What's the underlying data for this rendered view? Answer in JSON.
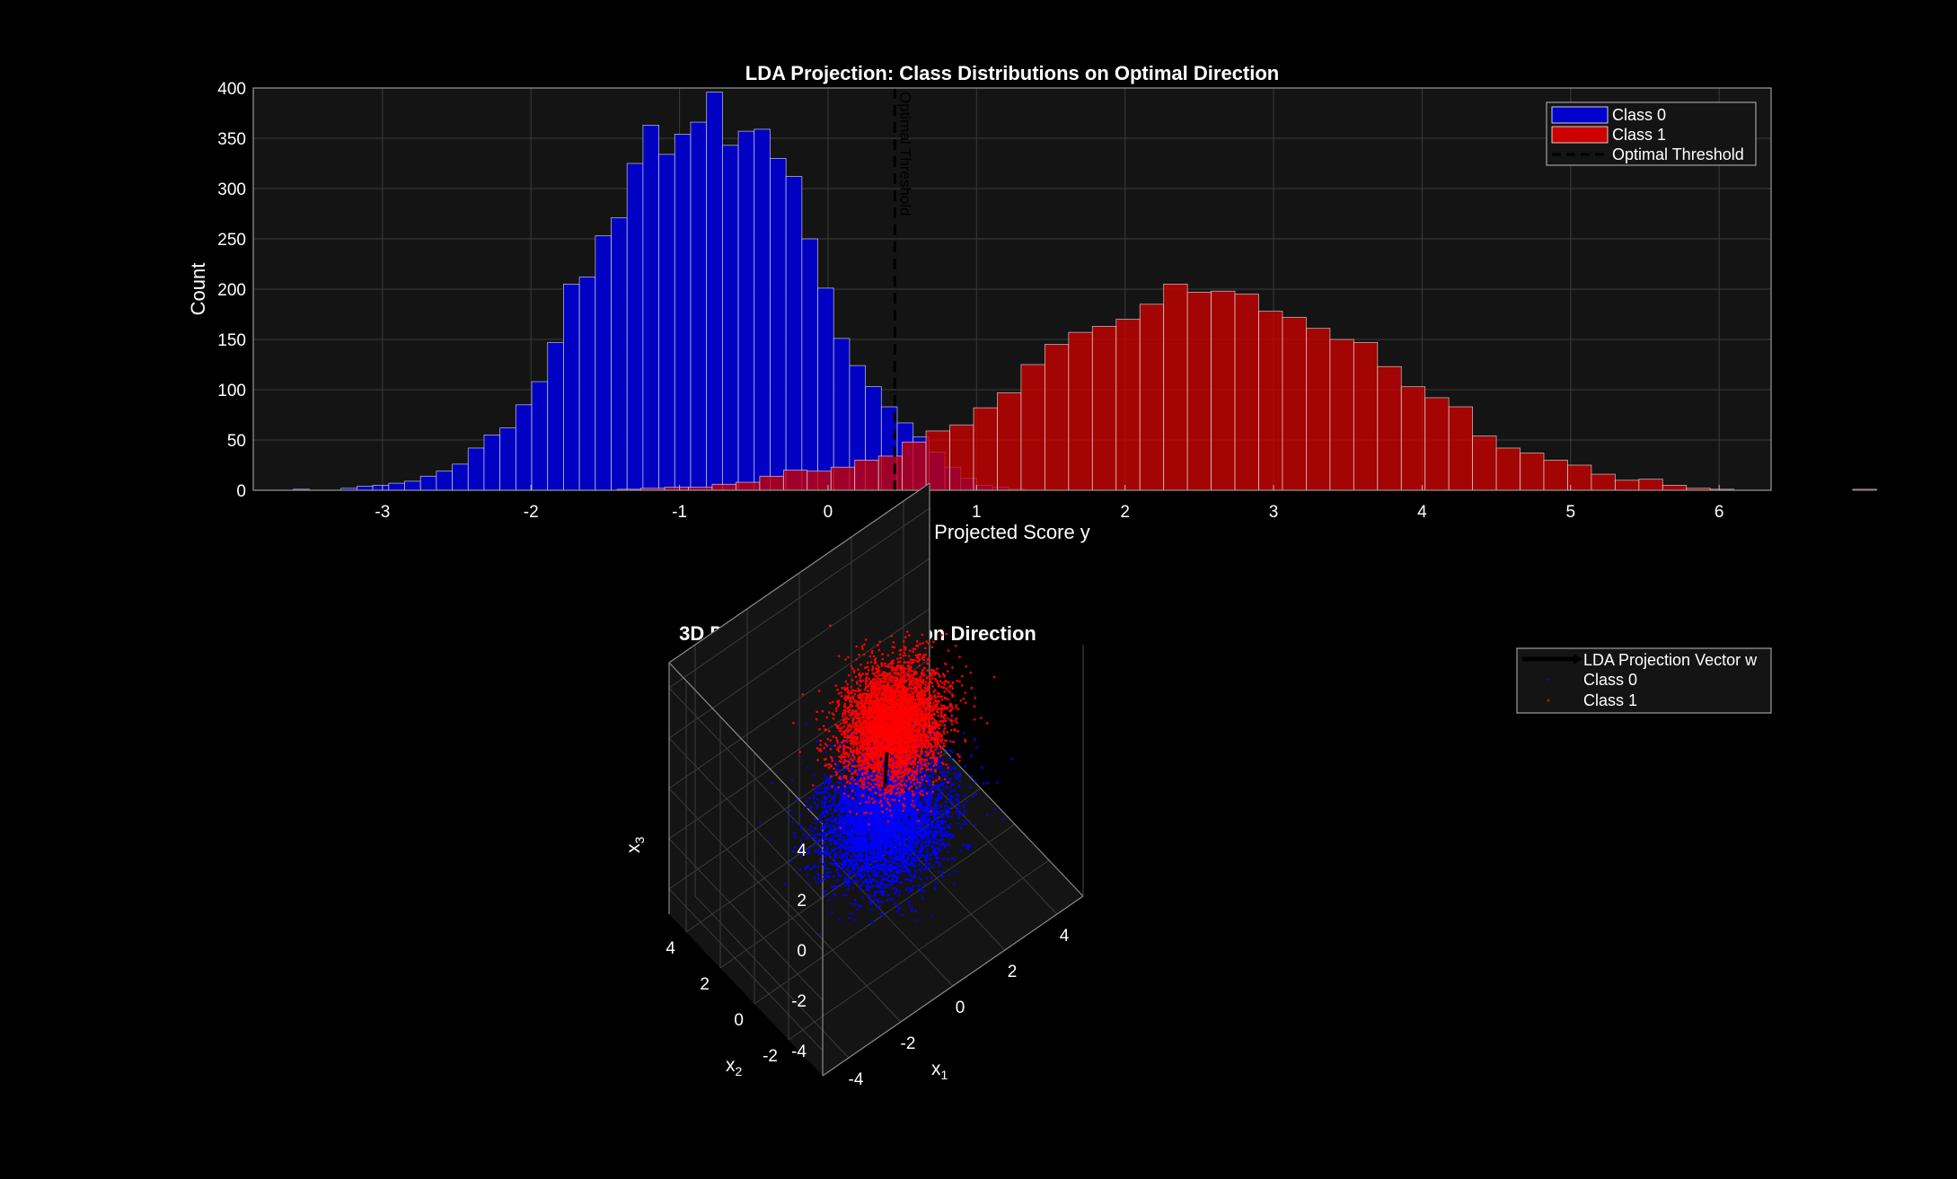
{
  "figure": {
    "background": "#000000",
    "axes_background": "#141414",
    "grid_color": "#3a3a3a",
    "text_color": "#ffffff"
  },
  "chart_data": [
    {
      "type": "bar",
      "subtype": "histogram",
      "title": "LDA Projection: Class Distributions on Optimal Direction",
      "xlabel": "Projected Score y",
      "ylabel": "Count",
      "xlim": [
        -3.87,
        6.35
      ],
      "ylim": [
        0,
        400
      ],
      "xticks": [
        -3,
        -2,
        -1,
        0,
        1,
        2,
        3,
        4,
        5,
        6
      ],
      "yticks": [
        0,
        50,
        100,
        150,
        200,
        250,
        300,
        350,
        400
      ],
      "grid": true,
      "legend_position": "top-right",
      "series": [
        {
          "name": "Class 0",
          "color": "#0000cc",
          "bin_start": -3.6,
          "bin_width": 0.107,
          "values": [
            1,
            0,
            0,
            2,
            4,
            5,
            7,
            9,
            14,
            19,
            26,
            42,
            55,
            62,
            85,
            108,
            147,
            205,
            212,
            253,
            271,
            325,
            363,
            334,
            354,
            366,
            396,
            343,
            357,
            359,
            330,
            312,
            250,
            201,
            151,
            124,
            103,
            83,
            67,
            53,
            38,
            23,
            12,
            5,
            3,
            1
          ]
        },
        {
          "name": "Class 1",
          "color": "#cc0000",
          "bin_start": -1.9,
          "bin_width": 0.16,
          "values": [
            0,
            0,
            0,
            1,
            2,
            3,
            3,
            6,
            8,
            14,
            20,
            19,
            23,
            30,
            34,
            48,
            59,
            65,
            82,
            97,
            125,
            145,
            157,
            163,
            170,
            185,
            205,
            197,
            198,
            195,
            178,
            172,
            161,
            150,
            147,
            123,
            103,
            92,
            83,
            54,
            42,
            37,
            30,
            25,
            16,
            10,
            11,
            5,
            2,
            1,
            0,
            0,
            0,
            0,
            0,
            1
          ]
        }
      ],
      "threshold": {
        "name": "Optimal Threshold",
        "x": 0.45,
        "label": "Optimal Threshold",
        "color": "#000000"
      }
    },
    {
      "type": "scatter",
      "subtype": "scatter3d",
      "title": "3D Data with LDA Projection Direction",
      "xlabel": "x",
      "xlabel_sub": "1",
      "ylabel": "x",
      "ylabel_sub": "2",
      "zlabel": "x",
      "zlabel_sub": "3",
      "xlim": [
        -5,
        5
      ],
      "ylim": [
        -4,
        5
      ],
      "zlim": [
        -5,
        5
      ],
      "xticks": [
        -4,
        -2,
        0,
        2,
        4
      ],
      "yticks": [
        -2,
        0,
        2,
        4
      ],
      "zticks": [
        -4,
        -2,
        0,
        2,
        4
      ],
      "grid": true,
      "legend_position": "top-right",
      "series": [
        {
          "name": "LDA Projection Vector w",
          "type": "vector",
          "color": "#000000",
          "from": [
            0,
            0,
            0
          ],
          "to": [
            0.35,
            0.4,
            0.9
          ]
        },
        {
          "name": "Class 0",
          "type": "points",
          "color": "#0000ff",
          "mean": [
            0,
            0,
            -1.2
          ],
          "std": [
            1,
            1,
            0.85
          ],
          "count": 5000
        },
        {
          "name": "Class 1",
          "type": "points",
          "color": "#ff0000",
          "mean": [
            0.7,
            0.6,
            1.6
          ],
          "std": [
            0.8,
            0.8,
            0.9
          ],
          "count": 5000
        }
      ]
    }
  ]
}
